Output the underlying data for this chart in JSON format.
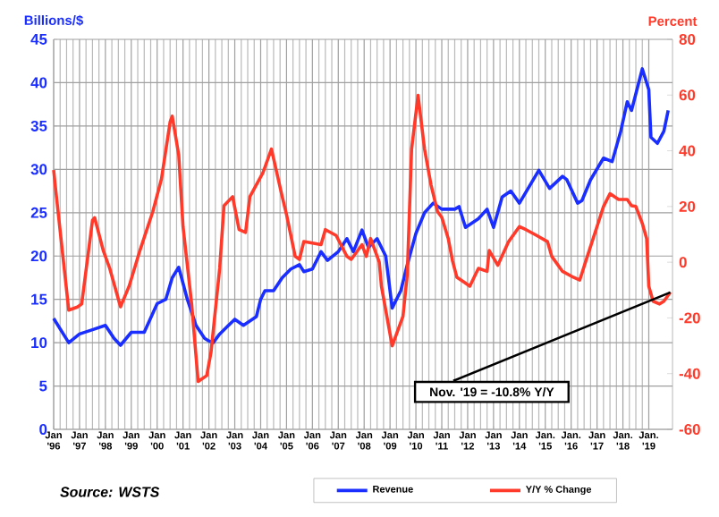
{
  "chart_data": {
    "type": "line",
    "ylabel": "Billions/$",
    "y2label": "Percent",
    "xlim": [
      "1996-01",
      "2019-12"
    ],
    "xticks": [
      {
        "value": "1996-01",
        "label": "Jan '96"
      },
      {
        "value": "1997-01",
        "label": "Jan '97"
      },
      {
        "value": "1998-01",
        "label": "Jan '98"
      },
      {
        "value": "1999-01",
        "label": "Jan '99"
      },
      {
        "value": "2000-01",
        "label": "Jan '00"
      },
      {
        "value": "2001-01",
        "label": "Jan '01"
      },
      {
        "value": "2002-01",
        "label": "Jan '02"
      },
      {
        "value": "2003-01",
        "label": "Jan '03"
      },
      {
        "value": "2004-01",
        "label": "Jan '04"
      },
      {
        "value": "2005-01",
        "label": "Jan '05"
      },
      {
        "value": "2006-01",
        "label": "Jan '06"
      },
      {
        "value": "2007-01",
        "label": "Jan '07"
      },
      {
        "value": "2008-01",
        "label": "Jan '08"
      },
      {
        "value": "2009-01",
        "label": "Jan '09"
      },
      {
        "value": "2010-01",
        "label": "Jan '10"
      },
      {
        "value": "2011-01",
        "label": "Jan '11"
      },
      {
        "value": "2012-01",
        "label": "Jan '12"
      },
      {
        "value": "2013-01",
        "label": "Jan '13"
      },
      {
        "value": "2014-01",
        "label": "Jan '14"
      },
      {
        "value": "2015-01",
        "label": "Jan. '15"
      },
      {
        "value": "2016-01",
        "label": "Jan. '16"
      },
      {
        "value": "2017-01",
        "label": "Jan '17"
      },
      {
        "value": "2018-01",
        "label": "Jan. '18"
      },
      {
        "value": "2019-01",
        "label": "Jan. '19"
      }
    ],
    "ylim": [
      0,
      45
    ],
    "yticks": [
      0,
      5,
      10,
      15,
      20,
      25,
      30,
      35,
      40,
      45
    ],
    "y2lim": [
      -60,
      80
    ],
    "y2ticks": [
      -60,
      -40,
      -20,
      0,
      20,
      40,
      60,
      80
    ],
    "grid": true,
    "legend": "bottom",
    "annotations": [
      "Source: WSTS",
      {
        "text": "Nov. '19 = -10.8% Y/Y",
        "x": "2019-11",
        "y": 15.8
      }
    ],
    "series": [
      {
        "name": "Revenue",
        "color": "#1a2eff",
        "x": [
          "1996-01",
          "1996-08",
          "1997-01",
          "1997-07",
          "1998-01",
          "1998-05",
          "1998-08",
          "1999-01",
          "1999-07",
          "2000-01",
          "2000-05",
          "2000-08",
          "2000-11",
          "2001-03",
          "2001-07",
          "2001-11",
          "2002-01",
          "2002-03",
          "2002-06",
          "2003-01",
          "2003-05",
          "2003-11",
          "2004-01",
          "2004-03",
          "2004-07",
          "2004-11",
          "2005-03",
          "2005-07",
          "2005-09",
          "2006-01",
          "2006-05",
          "2006-08",
          "2007-01",
          "2007-05",
          "2007-08",
          "2007-12",
          "2008-03",
          "2008-07",
          "2008-11",
          "2009-02",
          "2009-06",
          "2009-09",
          "2010-01",
          "2010-05",
          "2010-09",
          "2011-01",
          "2011-07",
          "2011-09",
          "2011-12",
          "2012-06",
          "2012-10",
          "2013-01",
          "2013-05",
          "2013-09",
          "2014-01",
          "2014-10",
          "2015-03",
          "2015-09",
          "2015-11",
          "2016-04",
          "2016-06",
          "2016-10",
          "2017-04",
          "2017-08",
          "2017-12",
          "2018-03",
          "2018-05",
          "2018-10",
          "2019-01",
          "2019-02",
          "2019-05",
          "2019-08",
          "2019-10"
        ],
        "values": [
          12.8,
          10.0,
          11.0,
          11.5,
          12.0,
          10.5,
          9.7,
          11.2,
          11.2,
          14.5,
          15.0,
          17.5,
          18.7,
          15.0,
          12.0,
          10.5,
          10.2,
          10.0,
          11.0,
          12.7,
          12.0,
          13.0,
          15.0,
          16.0,
          16.0,
          17.5,
          18.5,
          19.0,
          18.2,
          18.5,
          20.5,
          19.5,
          20.5,
          22.0,
          20.5,
          23.0,
          21.0,
          22.0,
          20.0,
          14.0,
          16.0,
          19.0,
          22.6,
          25.0,
          26.1,
          25.4,
          25.4,
          25.7,
          23.3,
          24.3,
          25.4,
          23.3,
          26.8,
          27.5,
          26.1,
          29.9,
          27.8,
          29.2,
          28.8,
          26.1,
          26.4,
          28.8,
          31.3,
          30.9,
          34.4,
          37.8,
          36.8,
          41.6,
          39.2,
          33.7,
          33.0,
          34.4,
          36.8
        ]
      },
      {
        "name": "Y/Y % Change",
        "color": "#ff3a2a",
        "axis": "y2",
        "x": [
          "1996-01",
          "1996-02",
          "1996-08",
          "1996-12",
          "1997-02",
          "1997-07",
          "1997-08",
          "1997-12",
          "1998-03",
          "1998-08",
          "1998-12",
          "1999-05",
          "1999-11",
          "2000-03",
          "2000-07",
          "2000-08",
          "2000-11",
          "2001-01",
          "2001-05",
          "2001-08",
          "2001-12",
          "2002-02",
          "2002-06",
          "2002-08",
          "2002-12",
          "2003-03",
          "2003-06",
          "2003-08",
          "2004-02",
          "2004-06",
          "2004-11",
          "2005-01",
          "2005-05",
          "2005-07",
          "2005-09",
          "2006-05",
          "2006-07",
          "2006-12",
          "2007-05",
          "2007-07",
          "2007-12",
          "2008-02",
          "2008-04",
          "2008-08",
          "2008-09",
          "2009-02",
          "2009-07",
          "2009-09",
          "2009-11",
          "2010-02",
          "2010-05",
          "2010-08",
          "2010-11",
          "2011-01",
          "2011-04",
          "2011-06",
          "2011-08",
          "2011-12",
          "2012-02",
          "2012-06",
          "2012-10",
          "2012-11",
          "2013-03",
          "2013-08",
          "2014-01",
          "2014-04",
          "2014-09",
          "2015-02",
          "2015-04",
          "2015-09",
          "2016-02",
          "2016-05",
          "2016-08",
          "2017-01",
          "2017-04",
          "2017-07",
          "2017-11",
          "2018-03",
          "2018-05",
          "2018-07",
          "2018-10",
          "2018-12",
          "2019-01",
          "2019-03",
          "2019-06",
          "2019-08",
          "2019-11"
        ],
        "values": [
          33.1,
          25.6,
          -17.2,
          -16.1,
          -15.0,
          15.0,
          16.0,
          4.2,
          -2.2,
          -16.0,
          -8.6,
          4.2,
          18.2,
          29.9,
          50.3,
          52.4,
          38.5,
          12.8,
          -15.0,
          -42.8,
          -40.7,
          -32.2,
          -2.2,
          20.3,
          23.5,
          11.7,
          10.7,
          23.5,
          32.0,
          40.6,
          23.5,
          17.1,
          2.1,
          1.0,
          7.4,
          6.3,
          11.7,
          9.6,
          2.1,
          1.0,
          6.3,
          2.1,
          8.5,
          0.0,
          -8.6,
          -30.0,
          -19.4,
          -4.3,
          40.6,
          59.9,
          40.6,
          27.8,
          18.2,
          16.1,
          8.5,
          0.4,
          -5.4,
          -7.5,
          -8.6,
          -2.2,
          -3.3,
          4.2,
          -1.1,
          7.4,
          12.8,
          11.7,
          9.6,
          7.4,
          2.1,
          -3.3,
          -5.4,
          -6.4,
          0.9,
          12.8,
          20.0,
          24.6,
          22.5,
          22.5,
          20.3,
          20.0,
          13.9,
          8.5,
          -8.6,
          -14.0,
          -15.0,
          -14.0,
          -10.8
        ]
      }
    ]
  }
}
